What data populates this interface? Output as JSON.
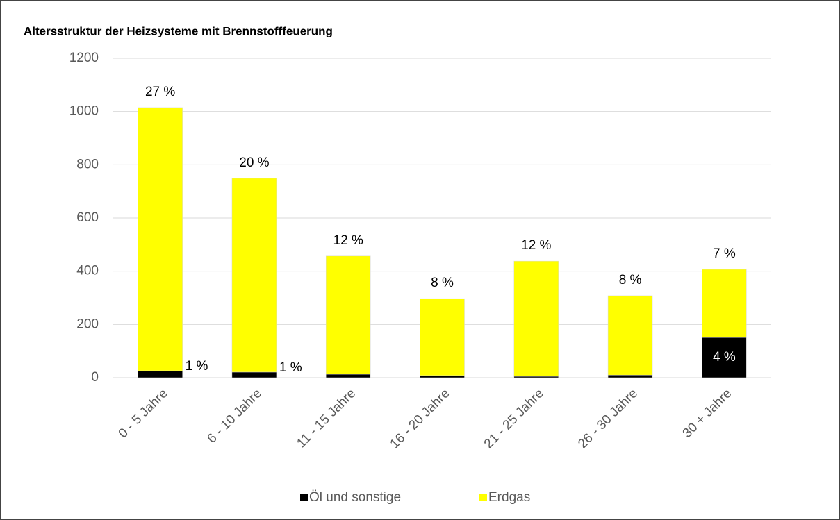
{
  "chart_data": {
    "type": "stacked_bar",
    "title": "Altersstruktur der Heizsysteme mit Brennstofffeuerung",
    "categories": [
      "0 - 5 Jahre",
      "6 - 10 Jahre",
      "11 - 15 Jahre",
      "16 - 20 Jahre",
      "21 - 25 Jahre",
      "26 - 30 Jahre",
      "30 + Jahre"
    ],
    "series": [
      {
        "name": "Öl und sonstige",
        "color": "#000000",
        "values": [
          26,
          21,
          13,
          8,
          5,
          10,
          151
        ],
        "labels": [
          "1 %",
          "1 %",
          null,
          null,
          null,
          null,
          "4 %"
        ]
      },
      {
        "name": "Erdgas",
        "color": "#ffff00",
        "values": [
          989,
          728,
          444,
          289,
          433,
          298,
          256
        ],
        "labels": [
          "27 %",
          "20 %",
          "12 %",
          "8 %",
          "12 %",
          "8 %",
          "7 %"
        ]
      }
    ],
    "ylim": [
      0,
      1200
    ],
    "yticks": [
      0,
      200,
      400,
      600,
      800,
      1000,
      1200
    ],
    "grid": true,
    "legend": "bottom"
  }
}
